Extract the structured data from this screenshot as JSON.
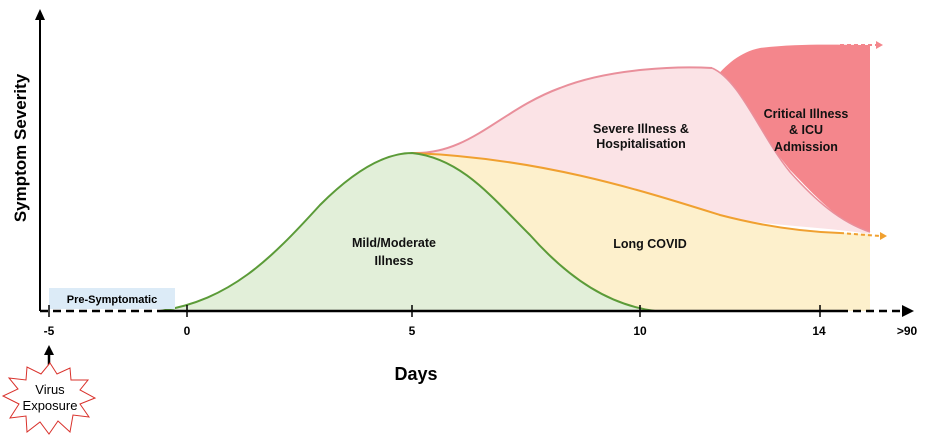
{
  "y_axis_label": "Symptom Severity",
  "x_axis_label": "Days",
  "x_ticks": [
    "-5",
    "0",
    "5",
    "10",
    "14",
    ">90"
  ],
  "regions": {
    "pre_symptomatic": "Pre-Symptomatic",
    "mild": [
      "Mild/Moderate",
      "Illness"
    ],
    "long_covid": "Long COVID",
    "severe": [
      "Severe Illness &",
      "Hospitalisation"
    ],
    "critical": [
      "Critical Illness",
      "& ICU",
      "Admission"
    ]
  },
  "exposure": [
    "Virus",
    "Exposure"
  ],
  "colors": {
    "mild_fill": "#e2efd9",
    "mild_line": "#5b9b38",
    "long_fill": "#fdf0cc",
    "long_line": "#f0a030",
    "severe_fill": "#fbe3e6",
    "severe_line": "#e98f9b",
    "critical_fill": "#f4868c",
    "pre_fill": "#dcebf7",
    "burst": "#d9312b"
  }
}
